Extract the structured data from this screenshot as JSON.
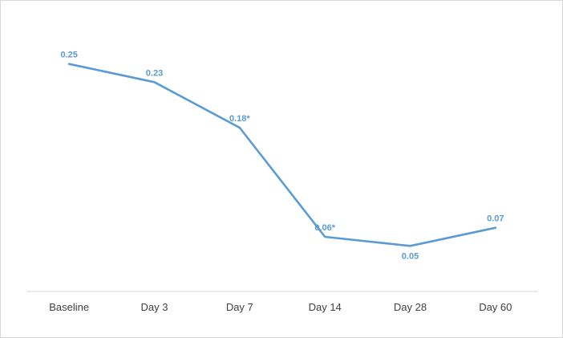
{
  "chart_data": {
    "type": "line",
    "title": "",
    "xlabel": "",
    "ylabel": "",
    "categories": [
      "Baseline",
      "Day 3",
      "Day 7",
      "Day 14",
      "Day 28",
      "Day 60"
    ],
    "values": [
      0.25,
      0.23,
      0.18,
      0.06,
      0.05,
      0.07
    ],
    "data_labels": [
      "0.25",
      "0.23",
      "0.18*",
      "0.06*",
      "0.05",
      "0.07"
    ],
    "label_placement": [
      "above",
      "above",
      "above",
      "above",
      "below",
      "above"
    ],
    "ylim": [
      0,
      0.3
    ],
    "grid": false,
    "legend": "none",
    "line_color": "#5b9bd5",
    "label_color": "#5b9bd5",
    "axis_color": "#d9d9d9",
    "category_label_color": "#404040"
  }
}
